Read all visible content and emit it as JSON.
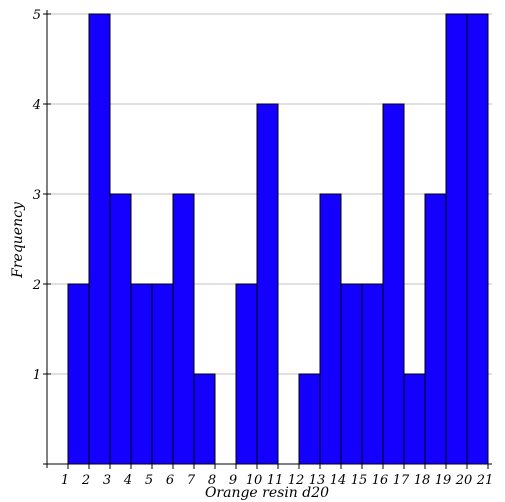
{
  "chart_data": {
    "type": "bar",
    "title": "",
    "xlabel": "Orange resin d20",
    "ylabel": "Frequency",
    "bins": [
      {
        "start": 1,
        "end": 2,
        "value": 2
      },
      {
        "start": 2,
        "end": 3,
        "value": 5
      },
      {
        "start": 3,
        "end": 4,
        "value": 3
      },
      {
        "start": 4,
        "end": 5,
        "value": 2
      },
      {
        "start": 5,
        "end": 6,
        "value": 2
      },
      {
        "start": 6,
        "end": 7,
        "value": 3
      },
      {
        "start": 7,
        "end": 8,
        "value": 1
      },
      {
        "start": 8,
        "end": 9,
        "value": 0
      },
      {
        "start": 9,
        "end": 10,
        "value": 2
      },
      {
        "start": 10,
        "end": 11,
        "value": 4
      },
      {
        "start": 11,
        "end": 12,
        "value": 0
      },
      {
        "start": 12,
        "end": 13,
        "value": 1
      },
      {
        "start": 13,
        "end": 14,
        "value": 3
      },
      {
        "start": 14,
        "end": 15,
        "value": 2
      },
      {
        "start": 15,
        "end": 16,
        "value": 2
      },
      {
        "start": 16,
        "end": 17,
        "value": 4
      },
      {
        "start": 17,
        "end": 18,
        "value": 1
      },
      {
        "start": 18,
        "end": 19,
        "value": 3
      },
      {
        "start": 19,
        "end": 20,
        "value": 5
      },
      {
        "start": 20,
        "end": 21,
        "value": 5
      }
    ],
    "x_ticks": [
      1,
      2,
      3,
      4,
      5,
      6,
      7,
      8,
      9,
      10,
      11,
      12,
      13,
      14,
      15,
      16,
      17,
      18,
      19,
      20,
      21
    ],
    "y_ticks": [
      1,
      2,
      3,
      4,
      5
    ],
    "xlim": [
      1,
      21
    ],
    "ylim": [
      0,
      5
    ],
    "grid": "horizontal",
    "colors": {
      "bar_fill": "#1400ff",
      "bar_edge": "#000000",
      "grid": "#c0c0c0",
      "axis": "#000000"
    }
  }
}
